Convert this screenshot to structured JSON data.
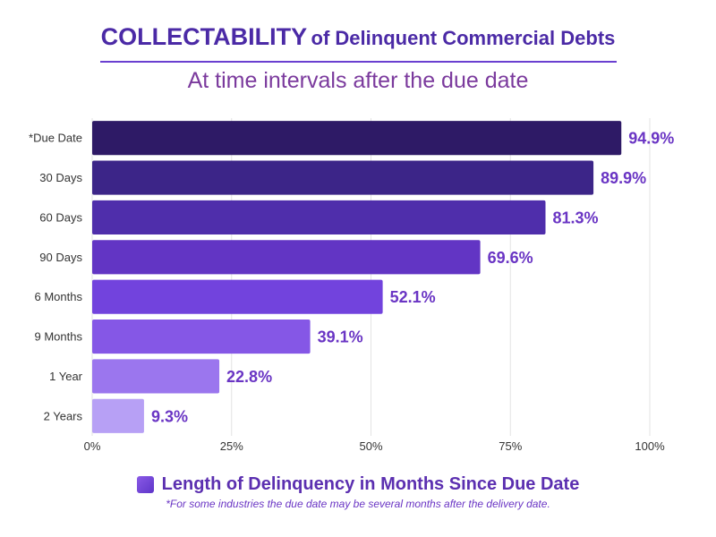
{
  "title_strong": "COLLECTABILITY",
  "title_rest": "of Delinquent Commercial Debts",
  "subtitle": "At time intervals after the due date",
  "legend_label": "Length of Delinquency in Months Since Due Date",
  "footnote": "*For some industries the due date may be several months after the delivery date.",
  "colors": {
    "title": "#4b2aa6",
    "subtitle": "#7b3a9d",
    "value_labels": "#6a35c4",
    "bars": [
      "#2e1a66",
      "#3c2588",
      "#4f2eab",
      "#6235c4",
      "#7243dd",
      "#8557e6",
      "#9b76ee",
      "#b7a0f5"
    ]
  },
  "chart_data": {
    "type": "bar",
    "orientation": "horizontal",
    "categories": [
      "*Due Date",
      "30 Days",
      "60 Days",
      "90 Days",
      "6 Months",
      "9 Months",
      "1 Year",
      "2 Years"
    ],
    "values": [
      94.9,
      89.9,
      81.3,
      69.6,
      52.1,
      39.1,
      22.8,
      9.3
    ],
    "value_labels": [
      "94.9%",
      "89.9%",
      "81.3%",
      "69.6%",
      "52.1%",
      "39.1%",
      "22.8%",
      "9.3%"
    ],
    "xlim": [
      0,
      100
    ],
    "xticks": [
      0,
      25,
      50,
      75,
      100
    ],
    "xtick_labels": [
      "0%",
      "25%",
      "50%",
      "75%",
      "100%"
    ],
    "grid": "vertical",
    "legend_position": "bottom-center"
  }
}
